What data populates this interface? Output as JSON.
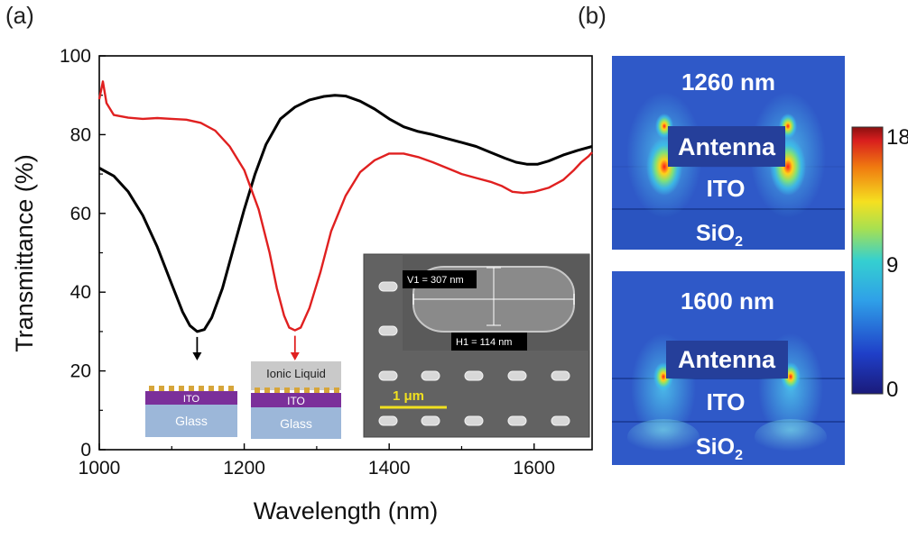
{
  "panel_a_label": "(a)",
  "panel_b_label": "(b)",
  "chart_data": {
    "type": "line",
    "xlabel": "Wavelength (nm)",
    "ylabel": "Transmittance (%)",
    "xlim": [
      1000,
      1680
    ],
    "ylim": [
      0,
      100
    ],
    "x_ticks": [
      1000,
      1200,
      1400,
      1600
    ],
    "y_ticks": [
      0,
      20,
      40,
      60,
      80,
      100
    ],
    "grid": false,
    "series": [
      {
        "color": "#000000",
        "points": [
          [
            1000,
            71.5
          ],
          [
            1020,
            69.5
          ],
          [
            1040,
            65.5
          ],
          [
            1060,
            59.5
          ],
          [
            1080,
            51.5
          ],
          [
            1100,
            42
          ],
          [
            1115,
            35
          ],
          [
            1125,
            31.5
          ],
          [
            1135,
            30
          ],
          [
            1145,
            30.5
          ],
          [
            1155,
            33.5
          ],
          [
            1170,
            41
          ],
          [
            1185,
            51
          ],
          [
            1200,
            61
          ],
          [
            1215,
            70
          ],
          [
            1230,
            77.5
          ],
          [
            1250,
            84
          ],
          [
            1270,
            87
          ],
          [
            1290,
            88.8
          ],
          [
            1310,
            89.7
          ],
          [
            1325,
            90
          ],
          [
            1340,
            89.8
          ],
          [
            1360,
            88.5
          ],
          [
            1380,
            86.5
          ],
          [
            1400,
            84
          ],
          [
            1420,
            82
          ],
          [
            1440,
            80.8
          ],
          [
            1460,
            80
          ],
          [
            1480,
            79
          ],
          [
            1500,
            78
          ],
          [
            1520,
            77
          ],
          [
            1540,
            75.5
          ],
          [
            1560,
            74
          ],
          [
            1575,
            73
          ],
          [
            1590,
            72.5
          ],
          [
            1605,
            72.5
          ],
          [
            1620,
            73.3
          ],
          [
            1640,
            74.8
          ],
          [
            1660,
            76
          ],
          [
            1680,
            77
          ]
        ]
      },
      {
        "color": "#e02020",
        "points": [
          [
            1000,
            89
          ],
          [
            1005,
            93.5
          ],
          [
            1010,
            88
          ],
          [
            1020,
            85
          ],
          [
            1040,
            84.3
          ],
          [
            1060,
            84
          ],
          [
            1080,
            84.2
          ],
          [
            1100,
            84
          ],
          [
            1120,
            83.8
          ],
          [
            1140,
            83
          ],
          [
            1160,
            81
          ],
          [
            1180,
            77
          ],
          [
            1200,
            71
          ],
          [
            1220,
            61
          ],
          [
            1235,
            50
          ],
          [
            1245,
            41
          ],
          [
            1255,
            34
          ],
          [
            1262,
            31
          ],
          [
            1270,
            30.3
          ],
          [
            1278,
            31
          ],
          [
            1290,
            36
          ],
          [
            1305,
            45
          ],
          [
            1320,
            55.5
          ],
          [
            1340,
            64.5
          ],
          [
            1360,
            70.5
          ],
          [
            1380,
            73.5
          ],
          [
            1400,
            75.2
          ],
          [
            1420,
            75.2
          ],
          [
            1440,
            74.3
          ],
          [
            1460,
            73
          ],
          [
            1480,
            71.5
          ],
          [
            1500,
            70
          ],
          [
            1520,
            69
          ],
          [
            1540,
            68
          ],
          [
            1555,
            67
          ],
          [
            1570,
            65.5
          ],
          [
            1585,
            65.2
          ],
          [
            1600,
            65.5
          ],
          [
            1620,
            66.5
          ],
          [
            1640,
            68.5
          ],
          [
            1655,
            71
          ],
          [
            1665,
            73
          ],
          [
            1675,
            74.5
          ],
          [
            1680,
            75.5
          ]
        ]
      }
    ]
  },
  "inset_left": {
    "ito": "ITO",
    "glass": "Glass"
  },
  "inset_right": {
    "ionic": "Ionic Liquid",
    "ito": "ITO",
    "glass": "Glass"
  },
  "sem": {
    "v1": "V1 = 307 nm",
    "h1": "H1 = 114 nm",
    "scale_bar": "1 μm"
  },
  "sim_top": {
    "wavelength": "1260 nm",
    "antenna": "Antenna",
    "ito": "ITO",
    "substrate": "SiO",
    "substrate_sub": "2"
  },
  "sim_bottom": {
    "wavelength": "1600 nm",
    "antenna": "Antenna",
    "ito": "ITO",
    "substrate": "SiO",
    "substrate_sub": "2"
  },
  "colorbar": {
    "max": "18",
    "mid": "9",
    "min": "0"
  },
  "colors": {
    "black_series": "#000000",
    "red_series": "#e02020",
    "ito": "#7b2f9a",
    "glass": "#9cb7d9",
    "gold": "#d6a53a",
    "ionic": "#c9c9c9",
    "field_bg": "#2f59c8",
    "sem_scale": "#f0e020"
  }
}
